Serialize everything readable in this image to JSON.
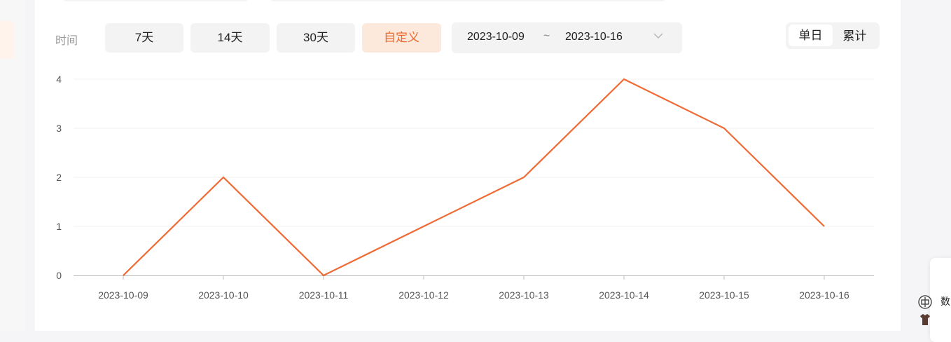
{
  "filters": {
    "time_label": "时间",
    "quick_ranges": [
      "7天",
      "14天",
      "30天",
      "自定义"
    ],
    "active_range": "自定义",
    "start_date": "2023-10-09",
    "separator": "~",
    "end_date": "2023-10-16"
  },
  "view_toggle": {
    "options": [
      "单日",
      "累计"
    ],
    "selected": "单日"
  },
  "side_widget": {
    "label": "数"
  },
  "colors": {
    "accent": "#f06a33",
    "accent_bg": "#fde8dc"
  },
  "chart_data": {
    "type": "line",
    "categories": [
      "2023-10-09",
      "2023-10-10",
      "2023-10-11",
      "2023-10-12",
      "2023-10-13",
      "2023-10-14",
      "2023-10-15",
      "2023-10-16"
    ],
    "series": [
      {
        "values": [
          0,
          2,
          0,
          1,
          2,
          4,
          3,
          1
        ]
      }
    ],
    "ylim": [
      0,
      4
    ],
    "yticks": [
      0,
      1,
      2,
      3,
      4
    ],
    "grid": true,
    "title": "",
    "xlabel": "",
    "ylabel": ""
  }
}
